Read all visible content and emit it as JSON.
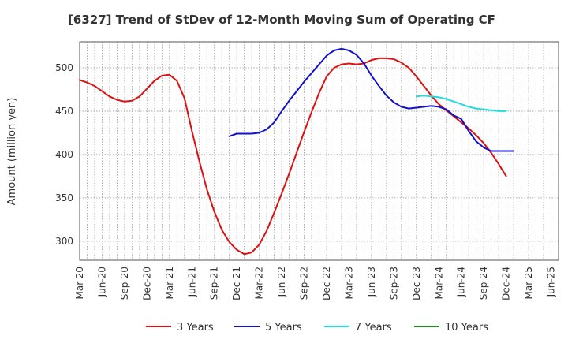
{
  "chart_data": {
    "type": "line",
    "title": "[6327]  Trend of StDev of 12-Month Moving Sum of Operating CF",
    "xlabel": "",
    "ylabel": "Amount (million yen)",
    "ylim": [
      278,
      530
    ],
    "yticks": [
      300,
      350,
      400,
      450,
      500
    ],
    "grid": true,
    "legend_position": "bottom",
    "x_months": [
      "Mar-20",
      "Apr-20",
      "May-20",
      "Jun-20",
      "Jul-20",
      "Aug-20",
      "Sep-20",
      "Oct-20",
      "Nov-20",
      "Dec-20",
      "Jan-21",
      "Feb-21",
      "Mar-21",
      "Apr-21",
      "May-21",
      "Jun-21",
      "Jul-21",
      "Aug-21",
      "Sep-21",
      "Oct-21",
      "Nov-21",
      "Dec-21",
      "Jan-22",
      "Feb-22",
      "Mar-22",
      "Apr-22",
      "May-22",
      "Jun-22",
      "Jul-22",
      "Aug-22",
      "Sep-22",
      "Oct-22",
      "Nov-22",
      "Dec-22",
      "Jan-23",
      "Feb-23",
      "Mar-23",
      "Apr-23",
      "May-23",
      "Jun-23",
      "Jul-23",
      "Aug-23",
      "Sep-23",
      "Oct-23",
      "Nov-23",
      "Dec-23",
      "Jan-24",
      "Feb-24",
      "Mar-24",
      "Apr-24",
      "May-24",
      "Jun-24",
      "Jul-24",
      "Aug-24",
      "Sep-24",
      "Oct-24",
      "Nov-24",
      "Dec-24",
      "Jan-25",
      "Feb-25",
      "Mar-25",
      "Apr-25",
      "May-25",
      "Jun-25",
      "Jul-25"
    ],
    "x_tick_labels": [
      "Mar-20",
      "Jun-20",
      "Sep-20",
      "Dec-20",
      "Mar-21",
      "Jun-21",
      "Sep-21",
      "Dec-21",
      "Mar-22",
      "Jun-22",
      "Sep-22",
      "Dec-22",
      "Mar-23",
      "Jun-23",
      "Sep-23",
      "Dec-23",
      "Mar-24",
      "Jun-24",
      "Sep-24",
      "Dec-24",
      "Mar-25",
      "Jun-25"
    ],
    "series": [
      {
        "name": "3 Years",
        "color": "#dd1111",
        "start": "Mar-20",
        "values": [
          486,
          483,
          479,
          473,
          467,
          463,
          461,
          462,
          467,
          476,
          485,
          491,
          492,
          485,
          465,
          427,
          392,
          360,
          334,
          313,
          299,
          290,
          285,
          287,
          296,
          312,
          333,
          355,
          378,
          402,
          426,
          449,
          471,
          490,
          500,
          504,
          505,
          504,
          505,
          509,
          511,
          511,
          510,
          506,
          500,
          490,
          479,
          468,
          458,
          451,
          444,
          437,
          430,
          422,
          413,
          402,
          389,
          375
        ]
      },
      {
        "name": "5 Years",
        "color": "#1111cc",
        "start": "Nov-21",
        "values": [
          421,
          424,
          424,
          424,
          425,
          429,
          437,
          450,
          462,
          473,
          484,
          494,
          504,
          514,
          520,
          522,
          520,
          515,
          505,
          491,
          479,
          468,
          460,
          455,
          453,
          454,
          455,
          456,
          455,
          452,
          445,
          441,
          427,
          415,
          408,
          404,
          404,
          404,
          404
        ]
      },
      {
        "name": "7 Years",
        "color": "#22dddd",
        "start": "Dec-23",
        "values": [
          467,
          468,
          467,
          466,
          464,
          461,
          458,
          455,
          453,
          452,
          451,
          450,
          450
        ]
      },
      {
        "name": "10 Years",
        "color": "#228822",
        "start": "Dec-23",
        "values": []
      }
    ]
  }
}
